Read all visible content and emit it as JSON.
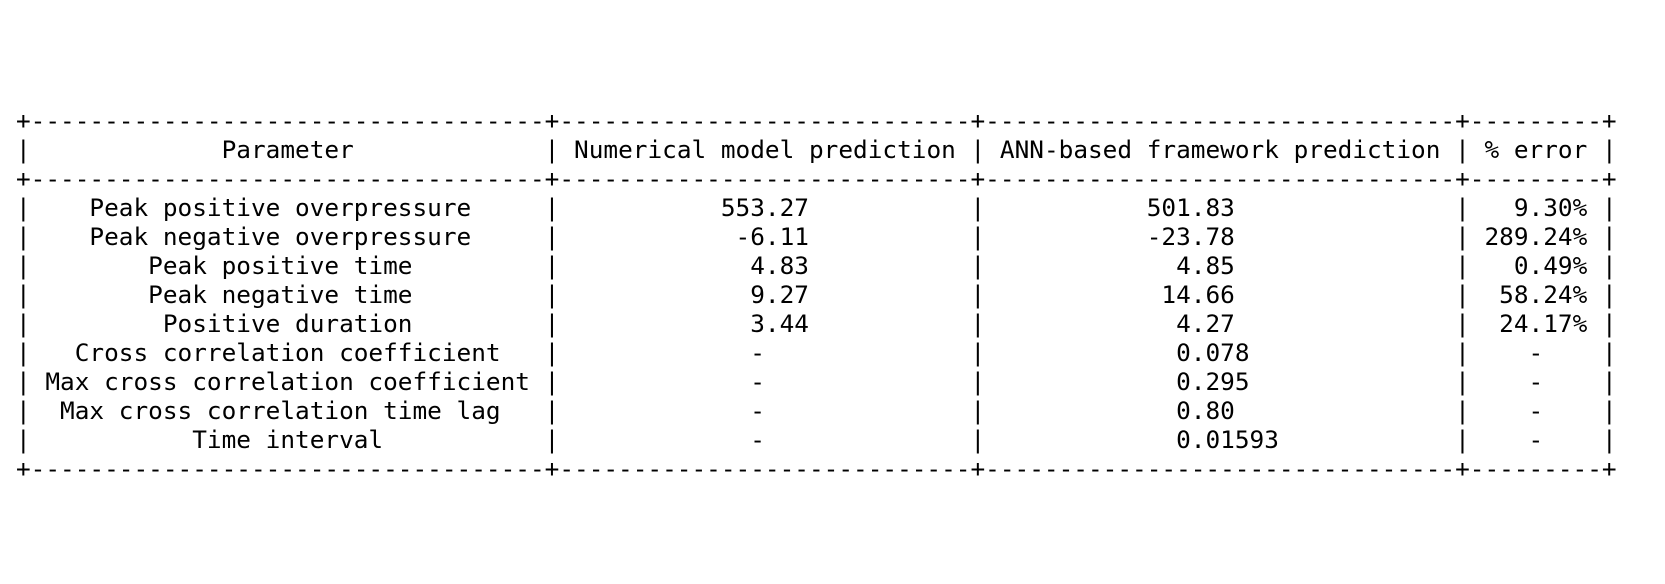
{
  "table": {
    "columns": [
      {
        "header": "Parameter",
        "align": "center"
      },
      {
        "header": "Numerical model prediction",
        "align": "center"
      },
      {
        "header": "ANN-based framework prediction",
        "align": "center"
      },
      {
        "header": "% error",
        "align": "center"
      }
    ],
    "rows": [
      [
        "Peak positive overpressure",
        "553.27",
        "501.83",
        "9.30%"
      ],
      [
        "Peak negative overpressure",
        "-6.11",
        "-23.78",
        "289.24%"
      ],
      [
        "Peak positive time",
        "4.83",
        "4.85",
        "0.49%"
      ],
      [
        "Peak negative time",
        "9.27",
        "14.66",
        "58.24%"
      ],
      [
        "Positive duration",
        "3.44",
        "4.27",
        "24.17%"
      ],
      [
        "Cross correlation coefficient",
        "-",
        "0.078",
        "-"
      ],
      [
        "Max cross correlation coefficient",
        "-",
        "0.295",
        "-"
      ],
      [
        "Max cross correlation time lag",
        "-",
        "0.80",
        "-"
      ],
      [
        "Time interval",
        "-",
        "0.01593",
        "-"
      ]
    ]
  }
}
